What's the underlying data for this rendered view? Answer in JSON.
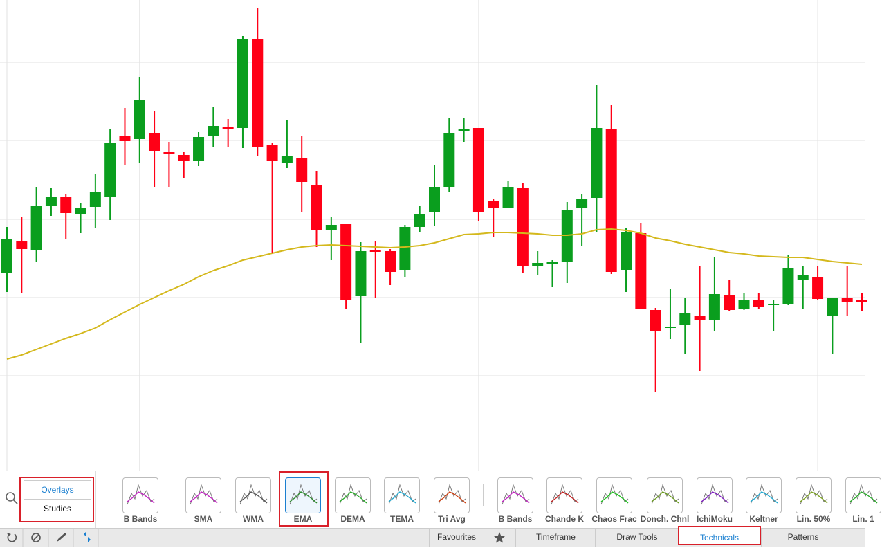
{
  "chart_data": {
    "type": "candlestick",
    "up_color": "#0a9e1e",
    "down_color": "#ff0016",
    "ma_color": "#d4b81c",
    "grid": true,
    "ylim": [
      0,
      680
    ],
    "yticks": [
      137,
      250,
      363,
      477,
      590
    ],
    "xticks": [
      0,
      9,
      32,
      55
    ],
    "open": [
      285,
      332,
      319,
      382,
      396,
      371,
      381,
      395,
      484,
      479,
      488,
      461,
      456,
      447,
      484,
      496,
      495,
      623,
      470,
      445,
      452,
      413,
      347,
      356,
      252,
      318,
      317,
      290,
      352,
      374,
      410,
      492,
      495,
      389,
      380,
      408,
      295,
      300,
      302,
      379,
      394,
      493,
      290,
      343,
      232,
      207,
      210,
      223,
      217,
      254,
      234,
      247,
      240,
      240,
      275,
      280,
      223,
      250,
      246
    ],
    "high": [
      352,
      367,
      410,
      408,
      399,
      387,
      428,
      494,
      524,
      569,
      520,
      475,
      461,
      489,
      526,
      508,
      628,
      669,
      473,
      506,
      483,
      433,
      367,
      356,
      330,
      331,
      320,
      355,
      382,
      442,
      510,
      510,
      495,
      393,
      418,
      416,
      317,
      304,
      388,
      400,
      557,
      528,
      350,
      357,
      235,
      262,
      250,
      295,
      309,
      276,
      257,
      256,
      246,
      311,
      296,
      296,
      250,
      296,
      256
    ],
    "low": [
      258,
      257,
      302,
      368,
      335,
      343,
      350,
      362,
      442,
      444,
      410,
      410,
      423,
      440,
      467,
      467,
      466,
      454,
      315,
      437,
      373,
      323,
      304,
      233,
      184,
      250,
      268,
      280,
      344,
      354,
      402,
      475,
      361,
      337,
      380,
      285,
      282,
      265,
      271,
      325,
      345,
      284,
      258,
      233,
      113,
      190,
      169,
      144,
      202,
      230,
      232,
      234,
      202,
      239,
      233,
      247,
      169,
      223,
      230
    ],
    "close": [
      335,
      320,
      383,
      395,
      372,
      380,
      403,
      474,
      476,
      535,
      462,
      458,
      447,
      482,
      498,
      495,
      623,
      467,
      447,
      454,
      417,
      348,
      355,
      247,
      317,
      317,
      287,
      352,
      371,
      410,
      488,
      493,
      373,
      380,
      410,
      295,
      300,
      301,
      377,
      393,
      495,
      287,
      345,
      233,
      202,
      208,
      227,
      218,
      255,
      232,
      246,
      237,
      241,
      292,
      282,
      248,
      250,
      243,
      243
    ],
    "ma": [
      161,
      167,
      175,
      183,
      191,
      198,
      206,
      218,
      229,
      240,
      250,
      260,
      269,
      280,
      289,
      296,
      304,
      309,
      314,
      319,
      323,
      325,
      326,
      325,
      324,
      323,
      322,
      323,
      325,
      329,
      335,
      341,
      342,
      344,
      344,
      343,
      342,
      340,
      340,
      342,
      348,
      349,
      347,
      343,
      336,
      332,
      327,
      323,
      319,
      315,
      313,
      310,
      309,
      308,
      308,
      305,
      302,
      300,
      298
    ]
  },
  "toolbar": {
    "modes": [
      "Overlays",
      "Studies"
    ],
    "selected": 3,
    "items": [
      "B Bands",
      "SMA",
      "WMA",
      "EMA",
      "DEMA",
      "TEMA",
      "Tri Avg",
      "B Bands",
      "Chande K",
      "Chaos Frac",
      "Donch. Chnl",
      "IchiMoku",
      "Keltner",
      "Lin. 50%",
      "Lin. 1"
    ]
  },
  "tabs": {
    "items": [
      "Favourites",
      "Timeframe",
      "Draw Tools",
      "Technicals",
      "Patterns"
    ],
    "selected": 3
  }
}
